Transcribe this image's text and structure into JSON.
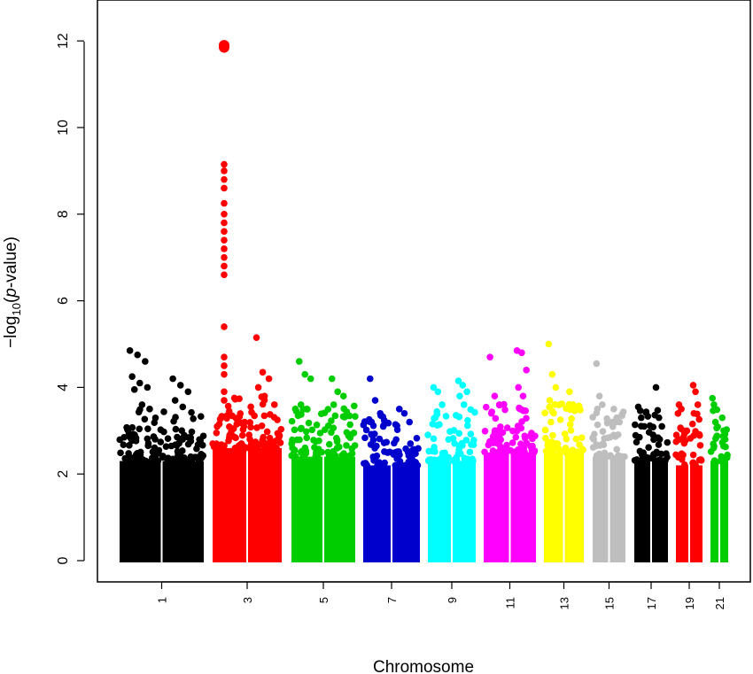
{
  "chart_data": {
    "type": "scatter",
    "subtype": "manhattan",
    "title": "",
    "xlabel": "Chromosome",
    "ylabel_prefix": "−log",
    "ylabel_sub": "10",
    "ylabel_open": "(",
    "ylabel_italic": "p",
    "ylabel_suffix": "-value)",
    "ylim": [
      0,
      12.5
    ],
    "y_ticks": [
      "0",
      "2",
      "4",
      "6",
      "8",
      "10",
      "12"
    ],
    "x_tick_labels": [
      "1",
      "3",
      "5",
      "7",
      "9",
      "11",
      "13",
      "15",
      "17",
      "19",
      "21"
    ],
    "grid": false,
    "legend": "none",
    "chromosomes": [
      {
        "chrom": "1",
        "color": "#000000",
        "bulk_max": 2.3,
        "peaks": [
          4.85,
          4.75,
          4.6,
          4.25,
          4.1,
          4.0,
          3.95,
          3.6,
          3.5
        ]
      },
      {
        "chrom": "2",
        "color": "#000000",
        "bulk_max": 2.3,
        "peaks": [
          4.2,
          4.05,
          3.9,
          3.7,
          3.55
        ]
      },
      {
        "chrom": "3",
        "color": "#ff0000",
        "bulk_max": 2.6,
        "peaks": [
          11.9,
          11.85,
          9.15,
          9.0,
          8.8,
          8.6,
          8.25,
          8.0,
          7.8,
          7.6,
          7.4,
          7.2,
          7.0,
          6.8,
          6.6,
          5.4,
          4.7,
          4.5,
          4.3,
          3.9,
          3.7
        ]
      },
      {
        "chrom": "4",
        "color": "#ff0000",
        "bulk_max": 2.6,
        "peaks": [
          5.15,
          4.35,
          4.2,
          4.0,
          3.8
        ]
      },
      {
        "chrom": "5",
        "color": "#00cd00",
        "bulk_max": 2.4,
        "peaks": [
          4.6,
          4.3,
          4.2,
          3.6,
          3.5
        ]
      },
      {
        "chrom": "6",
        "color": "#00cd00",
        "bulk_max": 2.4,
        "peaks": [
          4.2,
          3.9,
          3.8,
          3.6
        ]
      },
      {
        "chrom": "7",
        "color": "#0000cd",
        "bulk_max": 2.2,
        "peaks": [
          4.2,
          3.7,
          3.4,
          3.2
        ]
      },
      {
        "chrom": "8",
        "color": "#0000cd",
        "bulk_max": 2.2,
        "peaks": [
          3.5,
          3.4,
          3.2
        ]
      },
      {
        "chrom": "9",
        "color": "#00ffff",
        "bulk_max": 2.3,
        "peaks": [
          4.0,
          3.9,
          3.6,
          3.3
        ]
      },
      {
        "chrom": "10",
        "color": "#00ffff",
        "bulk_max": 2.3,
        "peaks": [
          4.15,
          4.05,
          3.9,
          3.8,
          3.6
        ]
      },
      {
        "chrom": "11",
        "color": "#ff00ff",
        "bulk_max": 2.5,
        "peaks": [
          4.7,
          3.8,
          3.6,
          3.4
        ]
      },
      {
        "chrom": "12",
        "color": "#ff00ff",
        "bulk_max": 2.5,
        "peaks": [
          4.85,
          4.8,
          4.4,
          4.0,
          3.8
        ]
      },
      {
        "chrom": "13",
        "color": "#ffff00",
        "bulk_max": 2.5,
        "peaks": [
          5.0,
          4.3,
          4.0,
          3.7
        ]
      },
      {
        "chrom": "14",
        "color": "#ffff00",
        "bulk_max": 2.5,
        "peaks": [
          3.9,
          3.6,
          3.5
        ]
      },
      {
        "chrom": "15",
        "color": "#bebebe",
        "bulk_max": 2.4,
        "peaks": [
          4.55,
          3.8,
          3.6,
          3.5
        ]
      },
      {
        "chrom": "16",
        "color": "#bebebe",
        "bulk_max": 2.4,
        "peaks": [
          3.5,
          3.3,
          3.2
        ]
      },
      {
        "chrom": "17",
        "color": "#000000",
        "bulk_max": 2.3,
        "peaks": [
          3.55,
          3.3,
          3.1
        ]
      },
      {
        "chrom": "18",
        "color": "#000000",
        "bulk_max": 2.3,
        "peaks": [
          4.0,
          3.3,
          3.1
        ]
      },
      {
        "chrom": "19",
        "color": "#ff0000",
        "bulk_max": 2.2,
        "peaks": [
          3.6,
          3.5,
          3.0
        ]
      },
      {
        "chrom": "20",
        "color": "#ff0000",
        "bulk_max": 2.2,
        "peaks": [
          4.05,
          3.9,
          3.6,
          3.4
        ]
      },
      {
        "chrom": "21",
        "color": "#00cd00",
        "bulk_max": 2.3,
        "peaks": [
          3.75,
          3.6,
          3.2
        ]
      },
      {
        "chrom": "22",
        "color": "#00cd00",
        "bulk_max": 2.3,
        "peaks": [
          3.3,
          3.0,
          2.8
        ]
      }
    ]
  }
}
